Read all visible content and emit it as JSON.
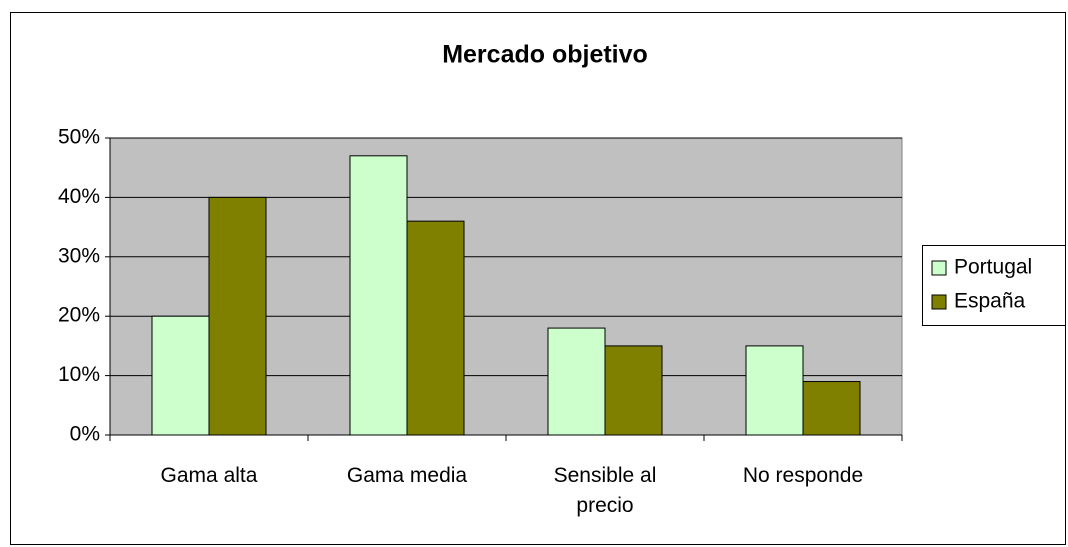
{
  "chart_data": {
    "type": "bar",
    "title": "Mercado objetivo",
    "categories": [
      "Gama alta",
      "Gama media",
      "Sensible al precio",
      "No responde"
    ],
    "series": [
      {
        "name": "Portugal",
        "color": "#ccffcc",
        "values": [
          20,
          47,
          18,
          15
        ]
      },
      {
        "name": "España",
        "color": "#808000",
        "values": [
          40,
          36,
          15,
          9
        ]
      }
    ],
    "ylim": [
      0,
      50
    ],
    "yticks": [
      {
        "value": 0,
        "label": "0%"
      },
      {
        "value": 10,
        "label": "10%"
      },
      {
        "value": 20,
        "label": "20%"
      },
      {
        "value": 30,
        "label": "30%"
      },
      {
        "value": 40,
        "label": "40%"
      },
      {
        "value": 50,
        "label": "50%"
      }
    ],
    "grid": true,
    "legend": "right",
    "plot_background": "#c0c0c0"
  }
}
